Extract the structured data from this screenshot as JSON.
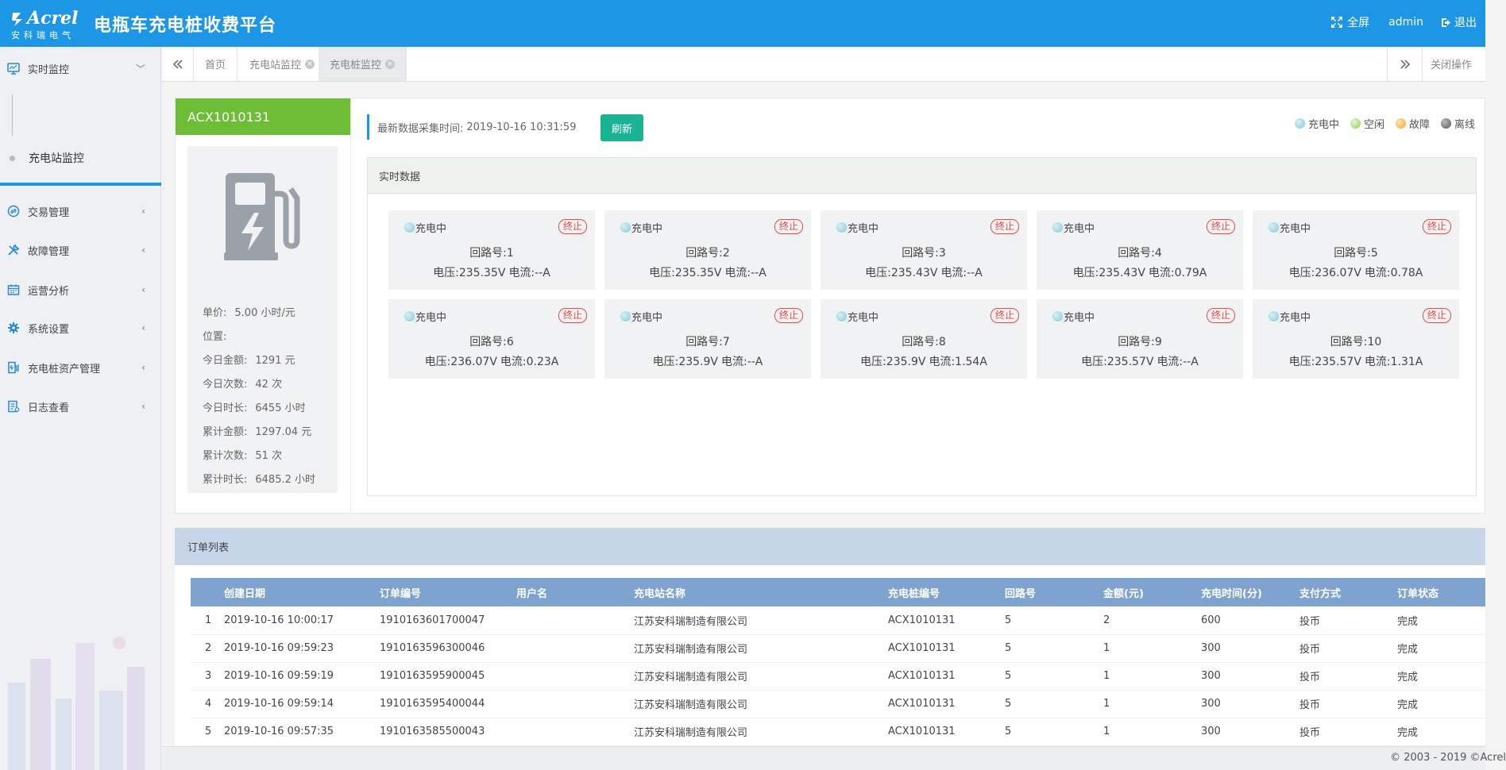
{
  "header": {
    "logo_brand": "Acrel",
    "logo_cn": "安科瑞电气",
    "title": "电瓶车充电桩收费平台",
    "fullscreen_label": "全屏",
    "user": "admin",
    "logout_label": "退出"
  },
  "sidebar": {
    "items": [
      {
        "label": "实时监控",
        "icon": "monitor-icon"
      },
      {
        "label": "交易管理",
        "icon": "exchange-icon"
      },
      {
        "label": "故障管理",
        "icon": "wrench-icon"
      },
      {
        "label": "运营分析",
        "icon": "calendar-icon"
      },
      {
        "label": "系统设置",
        "icon": "gear-icon"
      },
      {
        "label": "充电桩资产管理",
        "icon": "charger-icon"
      },
      {
        "label": "日志查看",
        "icon": "log-icon"
      }
    ],
    "sub_item": "充电站监控"
  },
  "tabs": {
    "items": [
      "首页",
      "充电站监控",
      "充电桩监控"
    ],
    "close_all": "关闭操作"
  },
  "pile": {
    "id": "ACX1010131",
    "stats": [
      {
        "label": "单价:",
        "value": "5.00 小时/元"
      },
      {
        "label": "位置:",
        "value": ""
      },
      {
        "label": "今日金额:",
        "value": "1291 元"
      },
      {
        "label": "今日次数:",
        "value": "42 次"
      },
      {
        "label": "今日时长:",
        "value": "6455 小时"
      },
      {
        "label": "累计金额:",
        "value": "1297.04 元"
      },
      {
        "label": "累计次数:",
        "value": "51 次"
      },
      {
        "label": "累计时长:",
        "value": "6485.2 小时"
      }
    ]
  },
  "realtime": {
    "collect_time_label": "最新数据采集时间:",
    "collect_time": "2019-10-16 10:31:59",
    "refresh_label": "刷新",
    "section_title": "实时数据",
    "legend": [
      {
        "label": "充电中",
        "color": "#7fc7d9"
      },
      {
        "label": "空闲",
        "color": "#8fd14f"
      },
      {
        "label": "故障",
        "color": "#f5a623"
      },
      {
        "label": "离线",
        "color": "#555555"
      }
    ],
    "circuits": [
      {
        "status": "充电中",
        "stop": "终止",
        "no": "回路号:1",
        "voltage": "电压:235.35V",
        "current": "电流:--A"
      },
      {
        "status": "充电中",
        "stop": "终止",
        "no": "回路号:2",
        "voltage": "电压:235.35V",
        "current": "电流:--A"
      },
      {
        "status": "充电中",
        "stop": "终止",
        "no": "回路号:3",
        "voltage": "电压:235.43V",
        "current": "电流:--A"
      },
      {
        "status": "充电中",
        "stop": "终止",
        "no": "回路号:4",
        "voltage": "电压:235.43V",
        "current": "电流:0.79A"
      },
      {
        "status": "充电中",
        "stop": "终止",
        "no": "回路号:5",
        "voltage": "电压:236.07V",
        "current": "电流:0.78A"
      },
      {
        "status": "充电中",
        "stop": "终止",
        "no": "回路号:6",
        "voltage": "电压:236.07V",
        "current": "电流:0.23A"
      },
      {
        "status": "充电中",
        "stop": "终止",
        "no": "回路号:7",
        "voltage": "电压:235.9V",
        "current": "电流:--A"
      },
      {
        "status": "充电中",
        "stop": "终止",
        "no": "回路号:8",
        "voltage": "电压:235.9V",
        "current": "电流:1.54A"
      },
      {
        "status": "充电中",
        "stop": "终止",
        "no": "回路号:9",
        "voltage": "电压:235.57V",
        "current": "电流:--A"
      },
      {
        "status": "充电中",
        "stop": "终止",
        "no": "回路号:10",
        "voltage": "电压:235.57V",
        "current": "电流:1.31A"
      }
    ]
  },
  "orders": {
    "title": "订单列表",
    "columns": [
      "",
      "创建日期",
      "订单编号",
      "用户名",
      "充电站名称",
      "充电桩编号",
      "回路号",
      "金额(元)",
      "充电时间(分)",
      "支付方式",
      "订单状态"
    ],
    "rows": [
      [
        "1",
        "2019-10-16 10:00:17",
        "1910163601700047",
        "",
        "江苏安科瑞制造有限公司",
        "ACX1010131",
        "5",
        "2",
        "600",
        "投币",
        "完成"
      ],
      [
        "2",
        "2019-10-16 09:59:23",
        "1910163596300046",
        "",
        "江苏安科瑞制造有限公司",
        "ACX1010131",
        "5",
        "1",
        "300",
        "投币",
        "完成"
      ],
      [
        "3",
        "2019-10-16 09:59:19",
        "1910163595900045",
        "",
        "江苏安科瑞制造有限公司",
        "ACX1010131",
        "5",
        "1",
        "300",
        "投币",
        "完成"
      ],
      [
        "4",
        "2019-10-16 09:59:14",
        "1910163595400044",
        "",
        "江苏安科瑞制造有限公司",
        "ACX1010131",
        "5",
        "1",
        "300",
        "投币",
        "完成"
      ],
      [
        "5",
        "2019-10-16 09:57:35",
        "1910163585500043",
        "",
        "江苏安科瑞制造有限公司",
        "ACX1010131",
        "5",
        "1",
        "300",
        "投币",
        "完成"
      ]
    ]
  },
  "footer": {
    "copyright": "© 2003 - 2019 ©Acrel"
  }
}
